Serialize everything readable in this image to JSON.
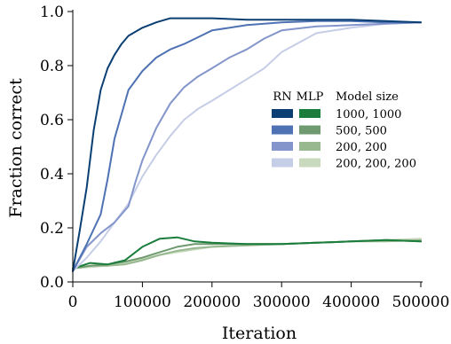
{
  "chart_data": {
    "type": "line",
    "title": "",
    "xlabel": "Iteration",
    "ylabel": "Fraction correct",
    "xlim": [
      0,
      500000
    ],
    "ylim": [
      0.0,
      1.0
    ],
    "xticks": [
      0,
      100000,
      200000,
      300000,
      400000,
      500000
    ],
    "xtick_labels": [
      "0",
      "100000",
      "200000",
      "300000",
      "400000",
      "500000"
    ],
    "yticks": [
      0.0,
      0.2,
      0.4,
      0.6,
      0.8,
      1.0
    ],
    "ytick_labels": [
      "0.0",
      "0.2",
      "0.4",
      "0.6",
      "0.8",
      "1.0"
    ],
    "grid": false,
    "legend": {
      "placement": "right",
      "headers": [
        "RN",
        "MLP",
        "Model size"
      ],
      "rows": [
        {
          "label": "1000, 1000",
          "rn_color": "#0b3f74",
          "mlp_color": "#1a7d3c"
        },
        {
          "label": "500, 500",
          "rn_color": "#4e72b3",
          "mlp_color": "#6f9a6f"
        },
        {
          "label": "200, 200",
          "rn_color": "#8395cb",
          "mlp_color": "#98b890"
        },
        {
          "label": "200, 200, 200",
          "rn_color": "#c6cde6",
          "mlp_color": "#c8d9be"
        }
      ]
    },
    "series": [
      {
        "model": "RN",
        "size": "1000, 1000",
        "color": "#0b3f74",
        "x": [
          0,
          10000,
          20000,
          30000,
          40000,
          50000,
          60000,
          70000,
          80000,
          100000,
          120000,
          140000,
          160000,
          200000,
          250000,
          300000,
          350000,
          400000,
          450000,
          500000
        ],
        "y": [
          0.04,
          0.19,
          0.35,
          0.56,
          0.71,
          0.79,
          0.84,
          0.88,
          0.91,
          0.94,
          0.96,
          0.975,
          0.975,
          0.975,
          0.97,
          0.97,
          0.97,
          0.97,
          0.965,
          0.96
        ]
      },
      {
        "model": "RN",
        "size": "500, 500",
        "color": "#4e72b3",
        "x": [
          0,
          20000,
          40000,
          50000,
          60000,
          70000,
          80000,
          100000,
          120000,
          140000,
          160000,
          180000,
          200000,
          250000,
          300000,
          350000,
          400000,
          450000,
          500000
        ],
        "y": [
          0.04,
          0.14,
          0.25,
          0.38,
          0.53,
          0.62,
          0.71,
          0.78,
          0.83,
          0.86,
          0.88,
          0.905,
          0.93,
          0.95,
          0.96,
          0.965,
          0.965,
          0.96,
          0.96
        ]
      },
      {
        "model": "RN",
        "size": "200, 200",
        "color": "#8395cb",
        "x": [
          0,
          20000,
          40000,
          60000,
          80000,
          90000,
          100000,
          120000,
          140000,
          160000,
          180000,
          200000,
          225000,
          250000,
          275000,
          300000,
          350000,
          400000,
          450000,
          500000
        ],
        "y": [
          0.04,
          0.13,
          0.18,
          0.22,
          0.28,
          0.37,
          0.45,
          0.57,
          0.66,
          0.72,
          0.76,
          0.79,
          0.83,
          0.86,
          0.9,
          0.93,
          0.945,
          0.95,
          0.955,
          0.96
        ]
      },
      {
        "model": "RN",
        "size": "200, 200, 200",
        "color": "#c6cde6",
        "x": [
          0,
          20000,
          40000,
          60000,
          80000,
          100000,
          120000,
          140000,
          160000,
          180000,
          200000,
          225000,
          250000,
          275000,
          300000,
          350000,
          400000,
          450000,
          500000
        ],
        "y": [
          0.04,
          0.09,
          0.15,
          0.22,
          0.29,
          0.39,
          0.47,
          0.54,
          0.6,
          0.64,
          0.67,
          0.71,
          0.75,
          0.79,
          0.85,
          0.92,
          0.94,
          0.955,
          0.96
        ]
      },
      {
        "model": "MLP",
        "size": "1000, 1000",
        "color": "#1a7d3c",
        "x": [
          0,
          25000,
          50000,
          75000,
          100000,
          125000,
          150000,
          175000,
          200000,
          250000,
          300000,
          350000,
          400000,
          450000,
          500000
        ],
        "y": [
          0.05,
          0.07,
          0.065,
          0.08,
          0.13,
          0.16,
          0.165,
          0.15,
          0.145,
          0.14,
          0.14,
          0.145,
          0.15,
          0.155,
          0.15
        ]
      },
      {
        "model": "MLP",
        "size": "500, 500",
        "color": "#6f9a6f",
        "x": [
          0,
          25000,
          50000,
          75000,
          100000,
          125000,
          150000,
          175000,
          200000,
          250000,
          300000,
          350000,
          400000,
          450000,
          500000
        ],
        "y": [
          0.05,
          0.06,
          0.065,
          0.075,
          0.09,
          0.11,
          0.13,
          0.14,
          0.14,
          0.14,
          0.14,
          0.145,
          0.15,
          0.155,
          0.15
        ]
      },
      {
        "model": "MLP",
        "size": "200, 200",
        "color": "#98b890",
        "x": [
          0,
          25000,
          50000,
          75000,
          100000,
          125000,
          150000,
          175000,
          200000,
          250000,
          300000,
          350000,
          400000,
          450000,
          500000
        ],
        "y": [
          0.05,
          0.06,
          0.06,
          0.065,
          0.08,
          0.1,
          0.115,
          0.125,
          0.13,
          0.135,
          0.14,
          0.145,
          0.15,
          0.15,
          0.155
        ]
      },
      {
        "model": "MLP",
        "size": "200, 200, 200",
        "color": "#c8d9be",
        "x": [
          0,
          25000,
          50000,
          75000,
          100000,
          125000,
          150000,
          175000,
          200000,
          250000,
          300000,
          350000,
          400000,
          450000,
          500000
        ],
        "y": [
          0.05,
          0.055,
          0.06,
          0.07,
          0.085,
          0.1,
          0.11,
          0.12,
          0.13,
          0.135,
          0.14,
          0.145,
          0.15,
          0.155,
          0.16
        ]
      }
    ]
  }
}
